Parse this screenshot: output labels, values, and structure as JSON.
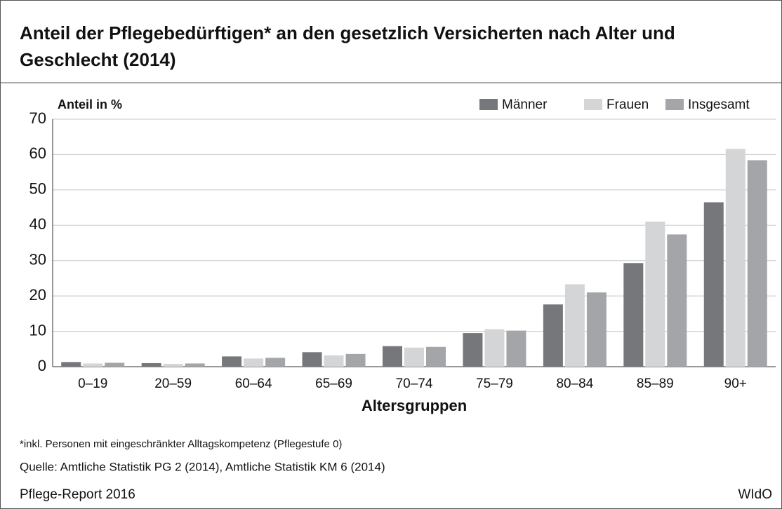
{
  "chart_data": {
    "type": "bar",
    "title": "Anteil der Pflegebedürftigen* an den gesetzlich Versicherten nach Alter und Geschlecht (2014)",
    "y_label": "Anteil in %",
    "x_label": "Altersgruppen",
    "categories": [
      "0–19",
      "20–59",
      "60–64",
      "65–69",
      "70–74",
      "75–79",
      "80–84",
      "85–89",
      "90+"
    ],
    "series": [
      {
        "name": "Männer",
        "color": "#76777a",
        "values": [
          1.3,
          1.0,
          2.9,
          4.1,
          5.8,
          9.5,
          17.6,
          29.3,
          46.5
        ]
      },
      {
        "name": "Frauen",
        "color": "#d4d5d6",
        "values": [
          0.9,
          0.8,
          2.3,
          3.2,
          5.4,
          10.6,
          23.3,
          41.0,
          61.6
        ]
      },
      {
        "name": "Insgesamt",
        "color": "#a4a5a8",
        "values": [
          1.1,
          0.9,
          2.5,
          3.6,
          5.6,
          10.2,
          21.0,
          37.4,
          58.4
        ]
      }
    ],
    "ylim": [
      0,
      70
    ],
    "yticks": [
      0,
      10,
      20,
      30,
      40,
      50,
      60,
      70
    ],
    "grid": true,
    "legend": "top-right",
    "note": "*inkl. Personen mit eingeschränkter Alltagskompetenz (Pflegestufe 0)",
    "source": "Quelle: Amtliche Statistik PG 2 (2014), Amtliche Statistik KM 6 (2014)",
    "footer_left": "Pflege-Report 2016",
    "footer_right": "WIdO"
  }
}
